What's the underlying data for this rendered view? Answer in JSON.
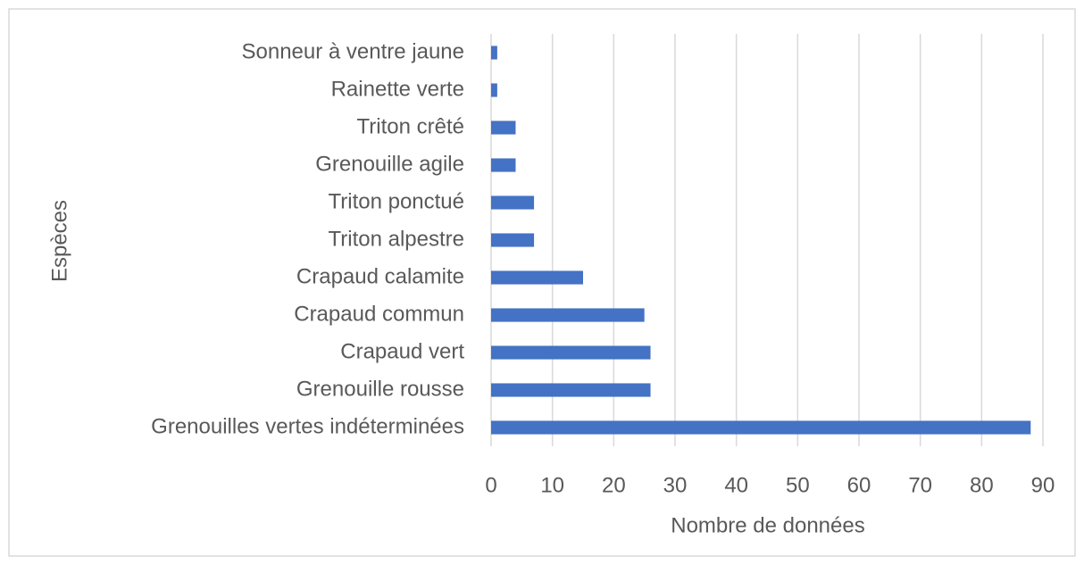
{
  "chart_data": {
    "type": "bar",
    "orientation": "horizontal",
    "categories": [
      "Grenouilles vertes indéterminées",
      "Grenouille rousse",
      "Crapaud vert",
      "Crapaud commun",
      "Crapaud calamite",
      "Triton alpestre",
      "Triton ponctué",
      "Grenouille agile",
      "Triton crêté",
      "Rainette verte",
      "Sonneur à ventre jaune"
    ],
    "values": [
      88,
      26,
      26,
      25,
      15,
      7,
      7,
      4,
      4,
      1,
      1
    ],
    "color": "#4472c4",
    "x_label": "Nombre de données",
    "y_label": "Espèces",
    "xlim": [
      0,
      90
    ],
    "xticks": [
      0,
      10,
      20,
      30,
      40,
      50,
      60,
      70,
      80,
      90
    ],
    "grid": true
  }
}
